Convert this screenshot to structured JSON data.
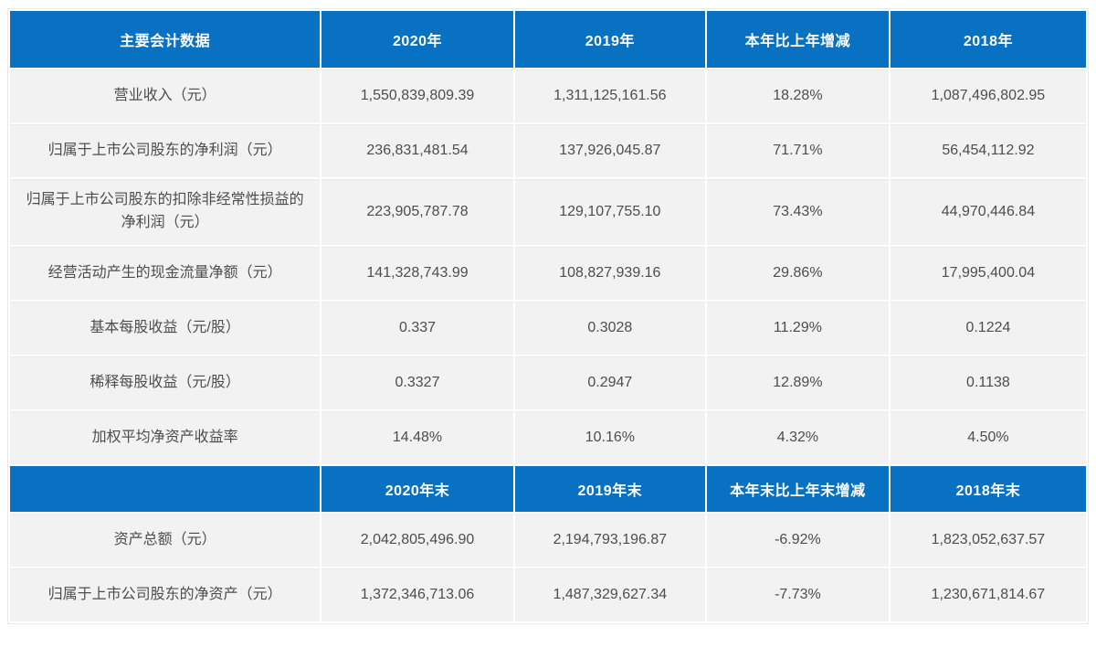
{
  "colors": {
    "header_bg": "#0871c2",
    "header_text": "#ffffff",
    "cell_bg": "#f2f2f2",
    "cell_text": "#4d4d4d",
    "page_bg": "#ffffff"
  },
  "table": {
    "sections": [
      {
        "header": [
          "主要会计数据",
          "2020年",
          "2019年",
          "本年比上年增减",
          "2018年"
        ],
        "rows": [
          [
            "营业收入（元）",
            "1,550,839,809.39",
            "1,311,125,161.56",
            "18.28%",
            "1,087,496,802.95"
          ],
          [
            "归属于上市公司股东的净利润（元）",
            "236,831,481.54",
            "137,926,045.87",
            "71.71%",
            "56,454,112.92"
          ],
          [
            "归属于上市公司股东的扣除非经常性损益的净利润（元）",
            "223,905,787.78",
            "129,107,755.10",
            "73.43%",
            "44,970,446.84"
          ],
          [
            "经营活动产生的现金流量净额（元）",
            "141,328,743.99",
            "108,827,939.16",
            "29.86%",
            "17,995,400.04"
          ],
          [
            "基本每股收益（元/股）",
            "0.337",
            "0.3028",
            "11.29%",
            "0.1224"
          ],
          [
            "稀释每股收益（元/股）",
            "0.3327",
            "0.2947",
            "12.89%",
            "0.1138"
          ],
          [
            "加权平均净资产收益率",
            "14.48%",
            "10.16%",
            "4.32%",
            "4.50%"
          ]
        ]
      },
      {
        "header": [
          "",
          "2020年末",
          "2019年末",
          "本年末比上年末增减",
          "2018年末"
        ],
        "rows": [
          [
            "资产总额（元）",
            "2,042,805,496.90",
            "2,194,793,196.87",
            "-6.92%",
            "1,823,052,637.57"
          ],
          [
            "归属于上市公司股东的净资产（元）",
            "1,372,346,713.06",
            "1,487,329,627.34",
            "-7.73%",
            "1,230,671,814.67"
          ]
        ]
      }
    ]
  }
}
